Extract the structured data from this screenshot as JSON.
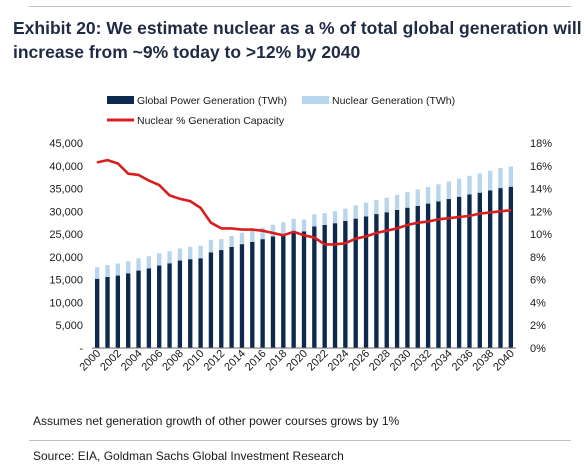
{
  "title_line1": "Exhibit 20: We estimate nuclear as a % of total global generation will",
  "title_line2": "increase from ~9% today to >12% by 2040",
  "note": "Assumes net generation growth of other power courses grows by 1%",
  "source": "Source: EIA, Goldman Sachs Global Investment Research",
  "colors": {
    "title": "#1f2a44",
    "global_bar": "#0c2a4e",
    "nuclear_bar": "#b7d5ec",
    "pct_line": "#d81e1e",
    "rule": "#b9c3cf"
  },
  "chart_data": {
    "type": "bar",
    "stacked": true,
    "categories": [
      2000,
      2001,
      2002,
      2003,
      2004,
      2005,
      2006,
      2007,
      2008,
      2009,
      2010,
      2011,
      2012,
      2013,
      2014,
      2015,
      2016,
      2017,
      2018,
      2019,
      2020,
      2021,
      2022,
      2023,
      2024,
      2025,
      2026,
      2027,
      2028,
      2029,
      2030,
      2031,
      2032,
      2033,
      2034,
      2035,
      2036,
      2037,
      2038,
      2039,
      2040
    ],
    "x_tick_labels": [
      "2000",
      "2002",
      "2004",
      "2006",
      "2008",
      "2010",
      "2012",
      "2014",
      "2016",
      "2018",
      "2020",
      "2022",
      "2024",
      "2026",
      "2028",
      "2030",
      "2032",
      "2034",
      "2036",
      "2038",
      "2040"
    ],
    "series": [
      {
        "name": "Global Power Generation (TWh)",
        "axis": "left",
        "values": [
          15200,
          15600,
          15900,
          16400,
          17000,
          17500,
          18100,
          18600,
          19200,
          19500,
          19700,
          21000,
          21500,
          22200,
          22800,
          23300,
          23900,
          24500,
          25000,
          25700,
          25600,
          26700,
          27000,
          27400,
          27900,
          28400,
          28900,
          29400,
          29800,
          30300,
          30800,
          31200,
          31700,
          32200,
          32700,
          33200,
          33700,
          34100,
          34600,
          35100,
          35400
        ]
      },
      {
        "name": "Nuclear Generation (TWh)",
        "axis": "left",
        "stack_on": "Global Power Generation (TWh)",
        "values": [
          2500,
          2600,
          2650,
          2650,
          2700,
          2650,
          2700,
          2650,
          2650,
          2700,
          2750,
          2750,
          2400,
          2400,
          2500,
          2550,
          2500,
          2550,
          2600,
          2650,
          2600,
          2650,
          2600,
          2600,
          2700,
          2900,
          3000,
          3100,
          3200,
          3300,
          3400,
          3600,
          3650,
          3750,
          3850,
          3950,
          4100,
          4200,
          4300,
          4400,
          4450
        ]
      },
      {
        "name": "Nuclear % Generation Capacity",
        "type": "line",
        "axis": "right",
        "values": [
          16.3,
          16.5,
          16.2,
          15.3,
          15.2,
          14.7,
          14.3,
          13.4,
          13.1,
          12.9,
          12.3,
          11.0,
          10.5,
          10.5,
          10.4,
          10.4,
          10.3,
          10.1,
          9.9,
          10.2,
          9.9,
          9.7,
          9.1,
          9.1,
          9.2,
          9.6,
          9.8,
          10.1,
          10.3,
          10.5,
          10.8,
          11.0,
          11.1,
          11.3,
          11.4,
          11.5,
          11.6,
          11.8,
          11.9,
          12.0,
          12.1
        ]
      }
    ],
    "y_left": {
      "ylim": [
        0,
        45000
      ],
      "tick_labels": [
        "-",
        "5,000",
        "10,000",
        "15,000",
        "20,000",
        "25,000",
        "30,000",
        "35,000",
        "40,000",
        "45,000"
      ],
      "tick_values": [
        0,
        5000,
        10000,
        15000,
        20000,
        25000,
        30000,
        35000,
        40000,
        45000
      ]
    },
    "y_right": {
      "ylim": [
        0,
        18
      ],
      "tick_labels": [
        "0%",
        "2%",
        "4%",
        "6%",
        "8%",
        "10%",
        "12%",
        "14%",
        "16%",
        "18%"
      ],
      "tick_values": [
        0,
        2,
        4,
        6,
        8,
        10,
        12,
        14,
        16,
        18
      ]
    },
    "grid": false,
    "legend_position": "top"
  }
}
